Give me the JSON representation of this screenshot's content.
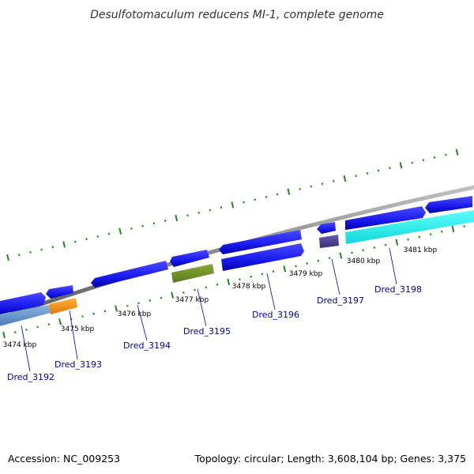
{
  "title": "Desulfotomaculum reducens MI-1, complete genome",
  "footer": {
    "accession": "Accession: NC_009253",
    "topology": "Topology: circular; Length: 3,608,104 bp; Genes: 3,375"
  },
  "tick_labels": [
    "3474 kbp",
    "3475 kbp",
    "3476 kbp",
    "3477 kbp",
    "3478 kbp",
    "3479 kbp",
    "3480 kbp",
    "3481 kbp"
  ],
  "gene_labels": [
    "Dred_3192",
    "Dred_3193",
    "Dred_3194",
    "Dred_3195",
    "Dred_3196",
    "Dred_3197",
    "Dred_3198"
  ],
  "colors": {
    "backbone": "#8a8a8a",
    "gene_default": "#1a1aee",
    "gene_steelblue": "#5a8ec4",
    "gene_orange": "#f08c10",
    "gene_olive": "#6b8e23",
    "gene_slate": "#4a3c8c",
    "gene_cyan": "#19f0f0",
    "ticks": "#1a8a1a",
    "label_text": "#0000aa"
  }
}
